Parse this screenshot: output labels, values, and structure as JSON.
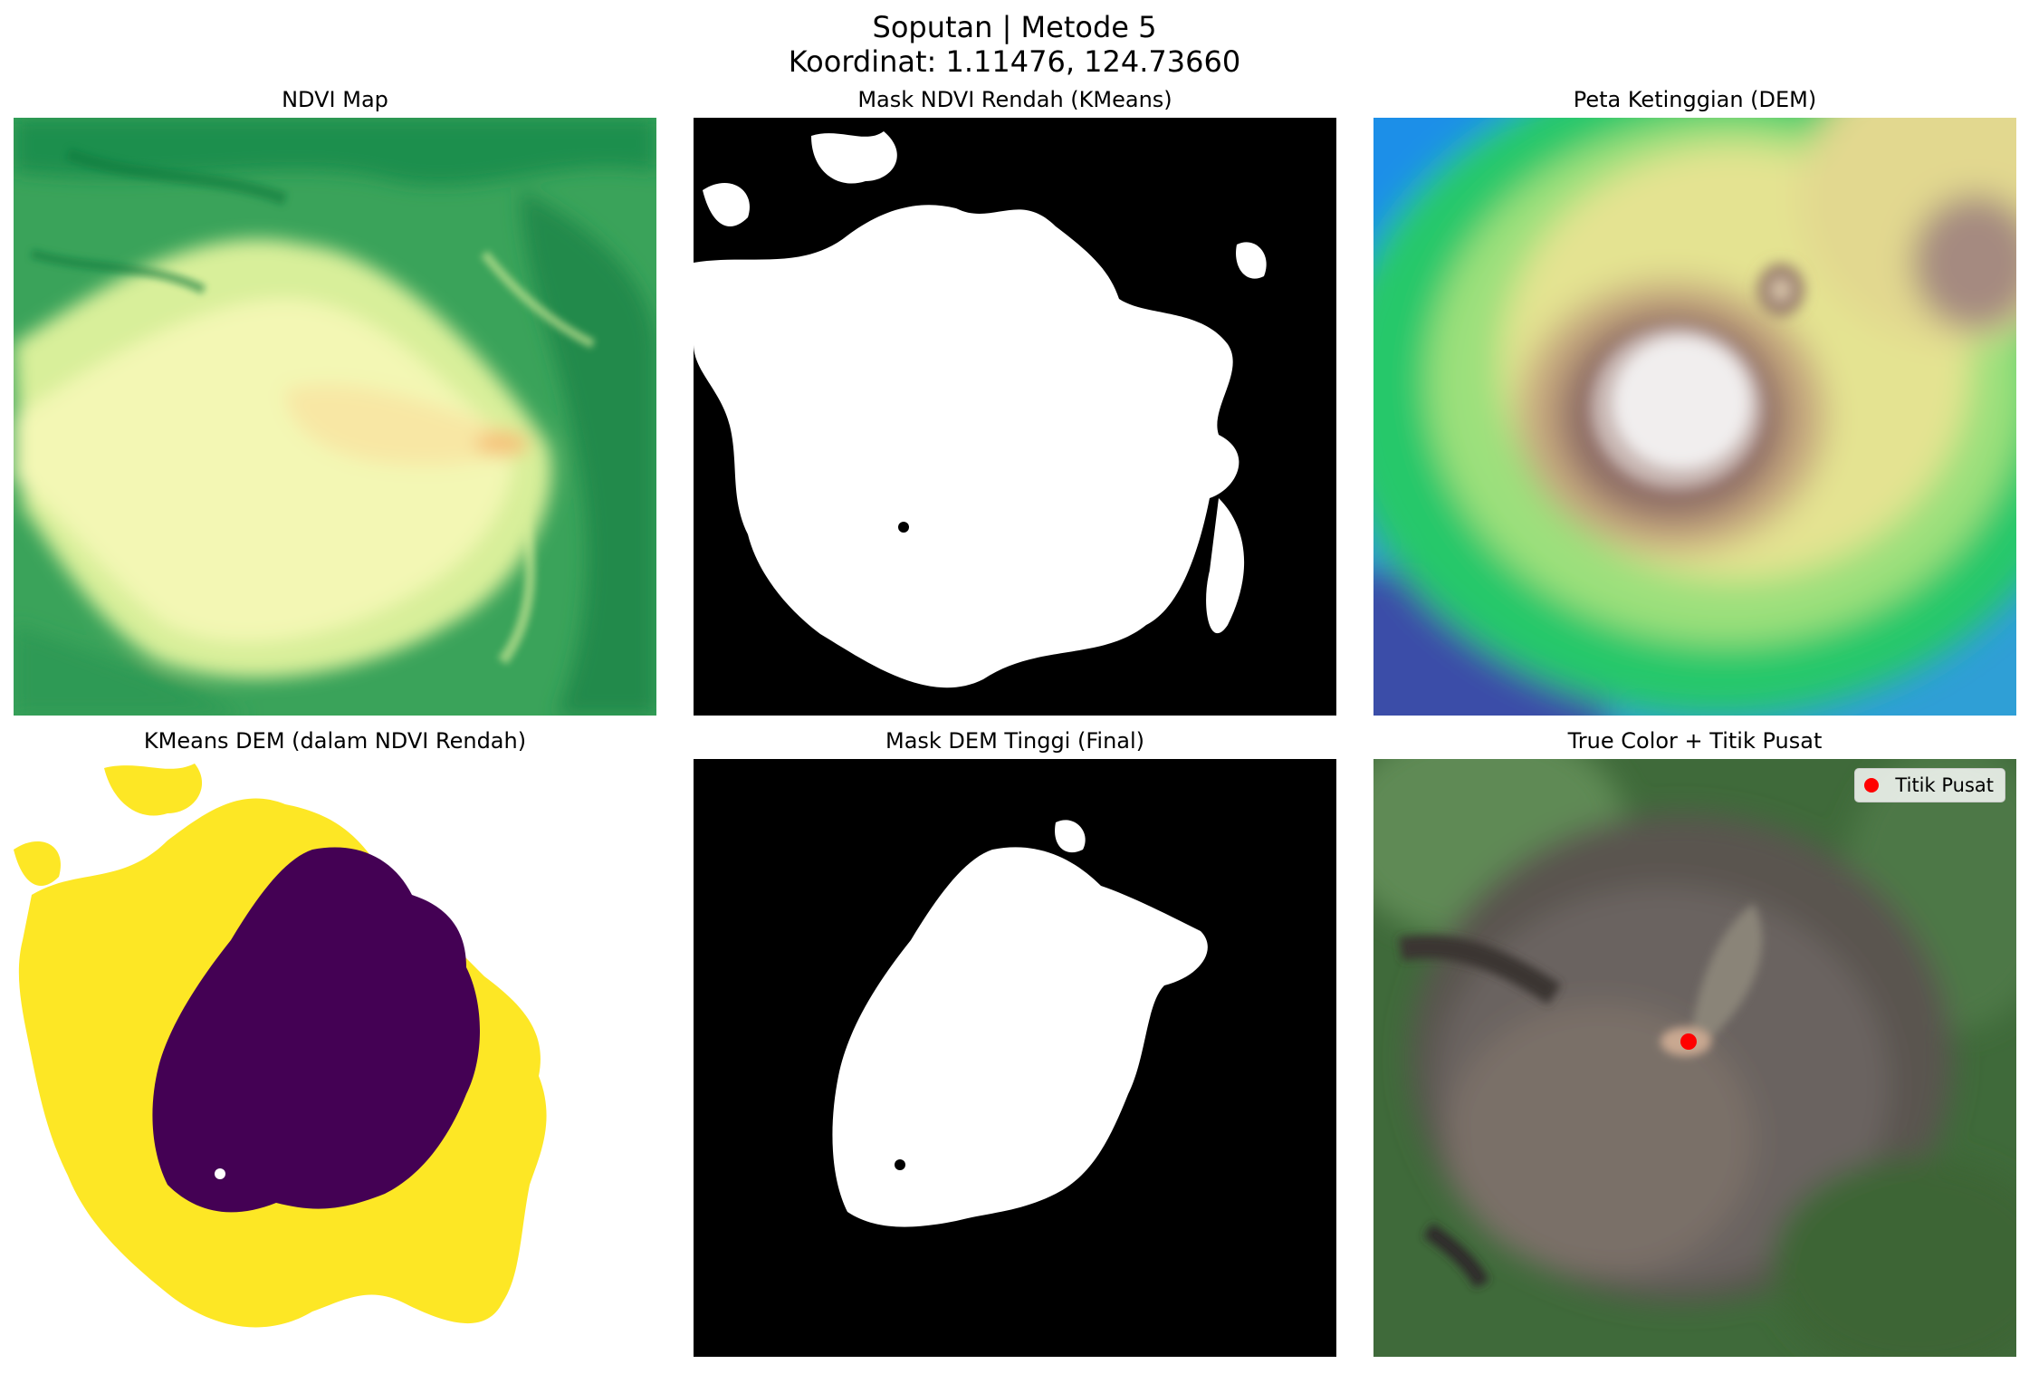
{
  "figure": {
    "title_line1": "Soputan | Metode 5",
    "title_line2": "Koordinat: 1.11476, 124.73660"
  },
  "panels": [
    {
      "title": "NDVI Map",
      "colormap": "RdYlGn"
    },
    {
      "title": "Mask NDVI Rendah (KMeans)",
      "colormap": "gray"
    },
    {
      "title": "Peta Ketinggian (DEM)",
      "colormap": "terrain"
    },
    {
      "title": "KMeans DEM (dalam NDVI Rendah)",
      "colormap": "viridis"
    },
    {
      "title": "Mask DEM Tinggi (Final)",
      "colormap": "gray"
    },
    {
      "title": "True Color + Titik Pusat",
      "colormap": "rgb"
    }
  ],
  "legend": {
    "label": "Titik Pusat",
    "marker_color": "#ff0000"
  },
  "colors": {
    "ndvi_high": "#1a9850",
    "ndvi_low": "#fee08b",
    "mask_on": "#ffffff",
    "mask_off": "#000000",
    "viridis_low": "#440154",
    "viridis_high": "#fde725",
    "center_marker": "#ff0000"
  }
}
